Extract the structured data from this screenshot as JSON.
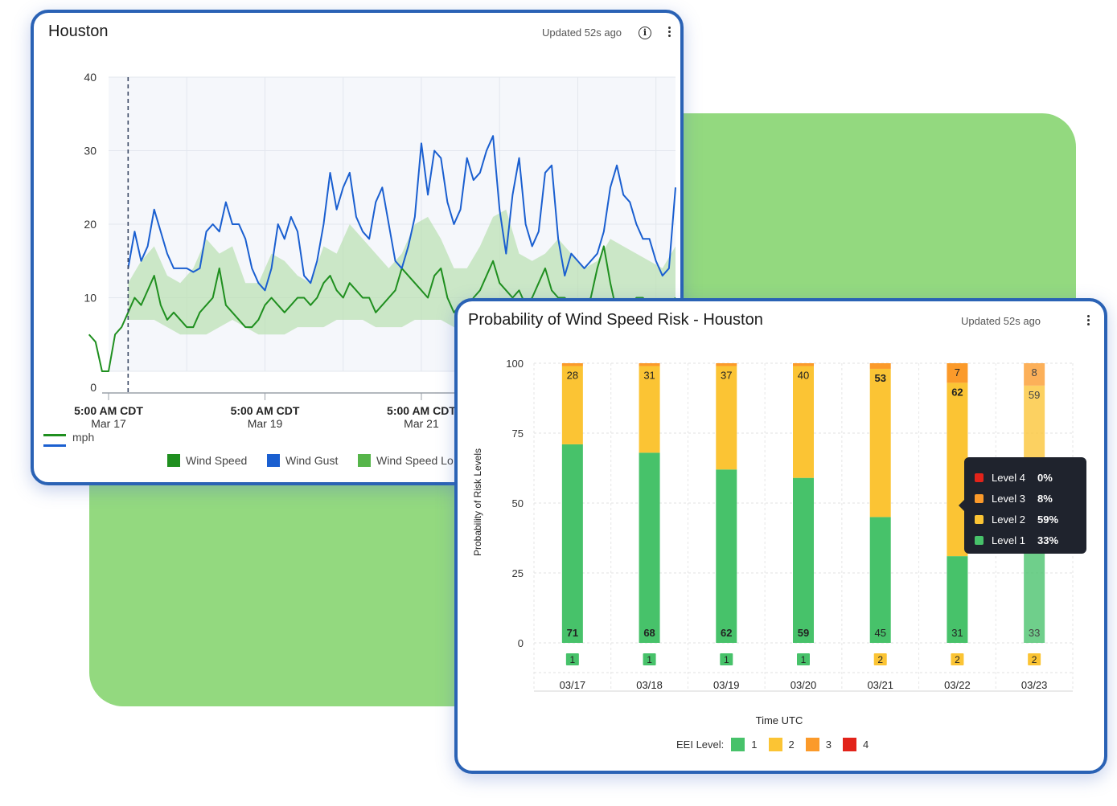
{
  "colors": {
    "panel_border": "#2a62b5",
    "wind_speed": "#1f8f1f",
    "wind_gust": "#1a5fd0",
    "wind_band": "#b9e0b0",
    "level1": "#47c26a",
    "level2": "#fbc434",
    "level3": "#fb9a2a",
    "level4": "#e2231a"
  },
  "panel1": {
    "title": "Houston",
    "updated": "Updated 52s ago",
    "info_icon": "info-icon",
    "menu_icon": "kebab-menu-icon",
    "unit_label": "mph",
    "legend": [
      {
        "label": "Wind Speed",
        "color": "#1f8f1f"
      },
      {
        "label": "Wind Gust",
        "color": "#1a5fd0"
      },
      {
        "label": "Wind Speed Lo",
        "color": "#56b54a"
      }
    ]
  },
  "panel2": {
    "title": "Probability of Wind Speed Risk - Houston",
    "updated": "Updated 52s ago",
    "menu_icon": "kebab-menu-icon",
    "legend_title": "EEI Level:",
    "legend": [
      {
        "label": "1",
        "color": "#47c26a"
      },
      {
        "label": "2",
        "color": "#fbc434"
      },
      {
        "label": "3",
        "color": "#fb9a2a"
      },
      {
        "label": "4",
        "color": "#e2231a"
      }
    ],
    "tooltip": [
      {
        "label": "Level 4",
        "value": "0%",
        "color": "#e2231a"
      },
      {
        "label": "Level 3",
        "value": "8%",
        "color": "#fb9a2a"
      },
      {
        "label": "Level 2",
        "value": "59%",
        "color": "#fbc434"
      },
      {
        "label": "Level 1",
        "value": "33%",
        "color": "#47c26a"
      }
    ]
  },
  "chart_data": [
    {
      "type": "line",
      "title": "Houston",
      "ylabel": "mph",
      "ylim": [
        0,
        40
      ],
      "yticks": [
        0,
        10,
        20,
        30,
        40
      ],
      "xlim": [
        0,
        174
      ],
      "x_unit": "hours since 5:00 AM CDT Mar 17",
      "xticks": [
        {
          "x": 0,
          "time": "5:00 AM CDT",
          "date": "Mar 17"
        },
        {
          "x": 48,
          "time": "5:00 AM CDT",
          "date": "Mar 19"
        },
        {
          "x": 96,
          "time": "5:00 AM CDT",
          "date": "Mar 21"
        }
      ],
      "now_marker_x": 6,
      "grid": true,
      "legend_position": "bottom",
      "series": [
        {
          "name": "Wind Gust",
          "x": [
            6,
            8,
            10,
            12,
            14,
            16,
            18,
            20,
            22,
            24,
            26,
            28,
            30,
            32,
            34,
            36,
            38,
            40,
            42,
            44,
            46,
            48,
            50,
            52,
            54,
            56,
            58,
            60,
            62,
            64,
            66,
            68,
            70,
            72,
            74,
            76,
            78,
            80,
            82,
            84,
            86,
            88,
            90,
            92,
            94,
            96,
            98,
            100,
            102,
            104,
            106,
            108,
            110,
            112,
            114,
            116,
            118,
            120,
            122,
            124,
            126,
            128,
            130,
            132,
            134,
            136,
            138,
            140,
            142,
            144,
            146,
            148,
            150,
            152,
            154,
            156,
            158,
            160,
            162,
            164,
            166,
            168,
            170,
            172,
            174
          ],
          "values": [
            14,
            19,
            15,
            17,
            22,
            19,
            16,
            14,
            14,
            14,
            13.5,
            14,
            19,
            20,
            19,
            23,
            20,
            20,
            18,
            14,
            12,
            11,
            14,
            20,
            18,
            21,
            19,
            13,
            12,
            15,
            20,
            27,
            22,
            25,
            27,
            21,
            19,
            18,
            23,
            25,
            20,
            15,
            14,
            17,
            21,
            31,
            24,
            30,
            29,
            23,
            20,
            22,
            29,
            26,
            27,
            30,
            32,
            22,
            16,
            24,
            29,
            20,
            17,
            19,
            27,
            28,
            18,
            13,
            16,
            15,
            14,
            15,
            16,
            19,
            25,
            28,
            24,
            23,
            20,
            18,
            18,
            15,
            13,
            14,
            25
          ]
        },
        {
          "name": "Wind Speed",
          "x": [
            -6,
            -4,
            -2,
            0,
            2,
            4,
            6,
            8,
            10,
            12,
            14,
            16,
            18,
            20,
            22,
            24,
            26,
            28,
            30,
            32,
            34,
            36,
            38,
            40,
            42,
            44,
            46,
            48,
            50,
            52,
            54,
            56,
            58,
            60,
            62,
            64,
            66,
            68,
            70,
            72,
            74,
            76,
            78,
            80,
            82,
            84,
            86,
            88,
            90,
            92,
            94,
            96,
            98,
            100,
            102,
            104,
            106,
            108,
            110,
            112,
            114,
            116,
            118,
            120,
            122,
            124,
            126,
            128,
            130,
            132,
            134,
            136,
            138,
            140,
            142,
            144,
            146,
            148,
            150,
            152,
            154,
            156,
            158,
            160,
            162,
            164,
            166,
            168,
            170,
            172,
            174
          ],
          "values": [
            5,
            4,
            0,
            0,
            5,
            6,
            8,
            10,
            9,
            11,
            13,
            9,
            7,
            8,
            7,
            6,
            6,
            8,
            9,
            10,
            14,
            9,
            8,
            7,
            6,
            6,
            7,
            9,
            10,
            9,
            8,
            9,
            10,
            10,
            9,
            10,
            12,
            13,
            11,
            10,
            12,
            11,
            10,
            10,
            8,
            9,
            10,
            11,
            14,
            13,
            12,
            11,
            10,
            13,
            14,
            10,
            8,
            9,
            8,
            10,
            11,
            13,
            15,
            12,
            11,
            10,
            11,
            9,
            10,
            12,
            14,
            11,
            10,
            10,
            9,
            8,
            9,
            10,
            14,
            17,
            12,
            8,
            8,
            9,
            10,
            10,
            9,
            8,
            8,
            9,
            10
          ]
        },
        {
          "name": "Wind Speed Low",
          "band": true,
          "x": [
            6,
            10,
            14,
            18,
            22,
            26,
            30,
            34,
            38,
            42,
            46,
            50,
            54,
            58,
            62,
            66,
            70,
            74,
            78,
            82,
            86,
            90,
            94,
            98,
            102,
            106,
            110,
            114,
            118,
            122,
            126,
            130,
            134,
            138,
            142,
            146,
            150,
            154,
            158,
            162,
            166,
            170,
            174
          ],
          "lower": [
            7,
            7,
            7,
            6,
            5,
            5,
            5,
            6,
            7,
            6,
            5,
            5,
            5,
            6,
            6,
            6,
            7,
            7,
            7,
            6,
            6,
            6,
            7,
            7,
            7,
            6,
            5,
            5,
            6,
            7,
            6,
            6,
            7,
            8,
            7,
            6,
            6,
            7,
            7,
            6,
            6,
            6,
            7
          ],
          "upper": [
            12,
            15,
            17,
            13,
            12,
            14,
            18,
            16,
            17,
            12,
            12,
            16,
            15,
            13,
            12,
            17,
            16,
            20,
            18,
            16,
            14,
            16,
            20,
            21,
            18,
            14,
            14,
            17,
            21,
            22,
            16,
            15,
            16,
            18,
            16,
            14,
            15,
            18,
            17,
            16,
            15,
            14,
            17
          ]
        }
      ]
    },
    {
      "type": "bar",
      "stacked": true,
      "title": "Probability of Wind Speed Risk - Houston",
      "xlabel": "Time UTC",
      "ylabel": "Probability of Risk Levels",
      "ylim": [
        0,
        100
      ],
      "yticks": [
        0,
        25,
        50,
        75,
        100
      ],
      "categories": [
        "03/17",
        "03/18",
        "03/19",
        "03/20",
        "03/21",
        "03/22",
        "03/23"
      ],
      "series": [
        {
          "name": "1",
          "values": [
            71,
            68,
            62,
            59,
            45,
            31,
            33
          ]
        },
        {
          "name": "2",
          "values": [
            28,
            31,
            37,
            40,
            53,
            62,
            59
          ]
        },
        {
          "name": "3",
          "values": [
            1,
            1,
            1,
            1,
            2,
            7,
            8
          ]
        },
        {
          "name": "4",
          "values": [
            0,
            0,
            0,
            0,
            0,
            0,
            0
          ]
        }
      ],
      "eei_level": [
        "1",
        "1",
        "1",
        "1",
        "2",
        "2",
        "2"
      ],
      "legend_position": "bottom"
    }
  ]
}
